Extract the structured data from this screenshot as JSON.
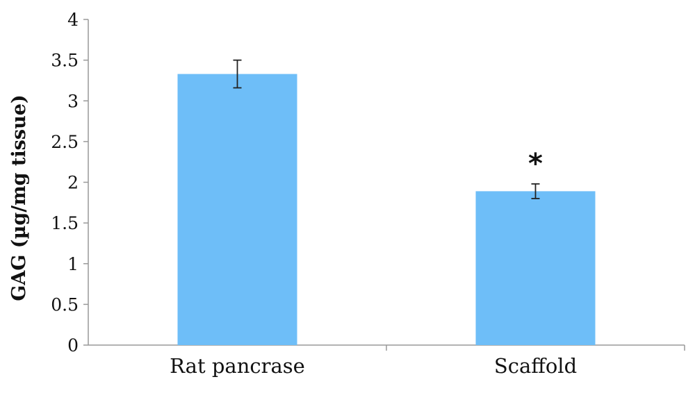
{
  "chart_data": {
    "type": "bar",
    "title": "",
    "xlabel": "",
    "ylabel": "GAG (µg/mg tissue)",
    "categories": [
      "Rat pancrase",
      "Scaffold"
    ],
    "values": [
      3.33,
      1.89
    ],
    "error": [
      0.17,
      0.09
    ],
    "annotations": [
      "",
      "*"
    ],
    "ylim": [
      0,
      4
    ],
    "yticks": [
      "0",
      "0.5",
      "1",
      "1.5",
      "2",
      "2.5",
      "3",
      "3.5",
      "4"
    ],
    "ytick_values": [
      0,
      0.5,
      1,
      1.5,
      2,
      2.5,
      3,
      3.5,
      4
    ],
    "grid": false,
    "legend": "none",
    "bar_color": "#6ebef8",
    "error_color": "#222222"
  }
}
